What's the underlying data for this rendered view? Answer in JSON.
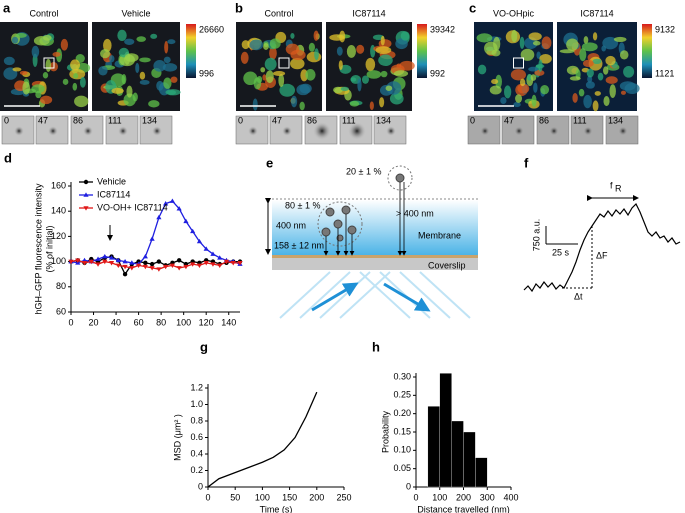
{
  "image_panels": [
    {
      "label": "a",
      "titles": [
        "Control",
        "Vehicle"
      ],
      "scale_max": 26660,
      "scale_min": 996,
      "frames": [
        0,
        47,
        86,
        111,
        134
      ]
    },
    {
      "label": "b",
      "titles": [
        "Control",
        "IC87114"
      ],
      "scale_max": 39342,
      "scale_min": 992,
      "frames": [
        0,
        47,
        86,
        111,
        134
      ]
    },
    {
      "label": "c",
      "titles": [
        "VO-OHpic",
        "IC87114"
      ],
      "scale_max": 9132,
      "scale_min": 1121,
      "frames": [
        0,
        47,
        86,
        111,
        134
      ]
    }
  ],
  "diagram_e": {
    "label": "e",
    "upper_fraction": "20 ± 1 %",
    "lower_fraction": "80 ± 1 %",
    "depth": "400 nm",
    "beyond": "> 400 nm",
    "penetration": "158 ± 12 nm",
    "membrane": "Membrane",
    "coverslip": "Coverslip"
  },
  "trace_f": {
    "label": "f",
    "scale_y": "750 a.u.",
    "scale_x": "25 s",
    "rise_label": "f",
    "rise_sub": "R",
    "amplitude": "ΔF",
    "duration": "Δt"
  },
  "chart_data": [
    {
      "type": "line",
      "panel_label": "d",
      "ylabel": [
        "hGH–GFP fluorescence intensity",
        "(% of initial)"
      ],
      "x": [
        0,
        6,
        12,
        18,
        24,
        30,
        36,
        42,
        48,
        54,
        60,
        66,
        72,
        78,
        84,
        90,
        96,
        102,
        108,
        114,
        120,
        126,
        132,
        138,
        144,
        150
      ],
      "series": [
        {
          "name": "Vehicle",
          "color": "#000000",
          "marker": "circle",
          "values": [
            100,
            101,
            99,
            102,
            100,
            103,
            104,
            101,
            90,
            98,
            100,
            99,
            98,
            100,
            97,
            99,
            101,
            98,
            100,
            99,
            101,
            100,
            98,
            99,
            100,
            100
          ]
        },
        {
          "name": "IC87114",
          "color": "#1f1fe0",
          "marker": "triangle",
          "values": [
            100,
            99,
            101,
            100,
            102,
            104,
            103,
            101,
            100,
            99,
            98,
            104,
            118,
            135,
            146,
            148,
            142,
            132,
            124,
            116,
            110,
            106,
            103,
            101,
            100,
            98
          ]
        },
        {
          "name": "VO-OH+ IC87114",
          "color": "#e01818",
          "marker": "triangle-down",
          "values": [
            100,
            101,
            99,
            100,
            98,
            100,
            99,
            97,
            96,
            95,
            97,
            96,
            95,
            94,
            96,
            97,
            95,
            96,
            98,
            97,
            99,
            98,
            97,
            100,
            99,
            99
          ]
        }
      ],
      "xlim": [
        0,
        150
      ],
      "xticks": [
        0,
        20,
        40,
        60,
        80,
        100,
        120,
        140
      ],
      "ylim": [
        60,
        160
      ],
      "yticks": [
        60,
        80,
        100,
        120,
        140,
        160
      ],
      "legend": "upper-left"
    },
    {
      "type": "line",
      "panel_label": "g",
      "xlabel": "Time (s)",
      "ylabel": "MSD (μm² )",
      "x": [
        0,
        20,
        40,
        60,
        80,
        100,
        120,
        140,
        160,
        180,
        200
      ],
      "series": [
        {
          "color": "#000000",
          "values": [
            0,
            0.1,
            0.15,
            0.2,
            0.25,
            0.3,
            0.36,
            0.45,
            0.6,
            0.85,
            1.15
          ]
        }
      ],
      "xlim": [
        0,
        250
      ],
      "xticks": [
        0,
        50,
        100,
        150,
        200,
        250
      ],
      "ylim": [
        0,
        1.2
      ],
      "yticks": [
        0,
        0.2,
        0.4,
        0.6,
        0.8,
        {
          "value": 1,
          "label": "1.0"
        },
        1.2
      ]
    },
    {
      "type": "histogram",
      "panel_label": "h",
      "xlabel": "Distance travelled (nm)",
      "ylabel": "Probability",
      "bins": [
        50,
        100,
        150,
        200,
        250,
        300
      ],
      "values": [
        0.22,
        0.31,
        0.18,
        0.15,
        0.08
      ],
      "color": "#000000",
      "xlim": [
        0,
        400
      ],
      "xticks": [
        0,
        100,
        200,
        300,
        400
      ],
      "ylim": [
        0,
        0.3
      ],
      "yticks": [
        0,
        0.05,
        {
          "value": 0.1,
          "label": "0.10"
        },
        0.15,
        {
          "value": 0.2,
          "label": "0.20"
        },
        0.25,
        {
          "value": 0.3,
          "label": "0.30"
        }
      ]
    }
  ]
}
